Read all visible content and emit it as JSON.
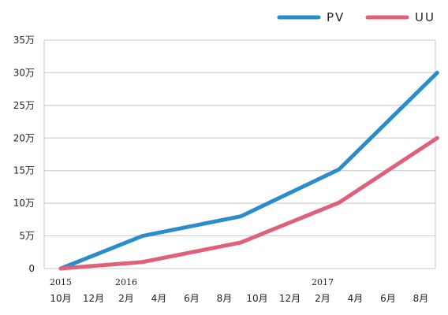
{
  "chart_data": {
    "type": "line",
    "title": "",
    "xlabel": "",
    "ylabel": "",
    "x_tick_labels": [
      "10月",
      "12月",
      "2月",
      "4月",
      "6月",
      "8月",
      "10月",
      "12月",
      "2月",
      "4月",
      "6月",
      "8月"
    ],
    "year_labels": [
      {
        "label": "2015",
        "at_tick": 0
      },
      {
        "label": "2016",
        "at_tick": 2
      },
      {
        "label": "2017",
        "at_tick": 8
      }
    ],
    "y_ticks": [
      0,
      5,
      10,
      15,
      20,
      25,
      30,
      35
    ],
    "y_tick_labels": [
      "0",
      "5万",
      "10万",
      "15万",
      "20万",
      "25万",
      "30万",
      "35万"
    ],
    "ylim": [
      0,
      35
    ],
    "y_unit": "万",
    "grid": true,
    "legend_position": "top-right",
    "series": [
      {
        "name": "PV",
        "color": "#2b8ccc",
        "points": [
          [
            0,
            0
          ],
          [
            2.5,
            5
          ],
          [
            5.5,
            8
          ],
          [
            8.5,
            15.2
          ],
          [
            11.5,
            30
          ]
        ]
      },
      {
        "name": "UU",
        "color": "#e0607a",
        "points": [
          [
            0,
            0
          ],
          [
            2.5,
            1
          ],
          [
            5.5,
            4
          ],
          [
            8.5,
            10.1
          ],
          [
            11.5,
            20
          ]
        ]
      }
    ]
  }
}
